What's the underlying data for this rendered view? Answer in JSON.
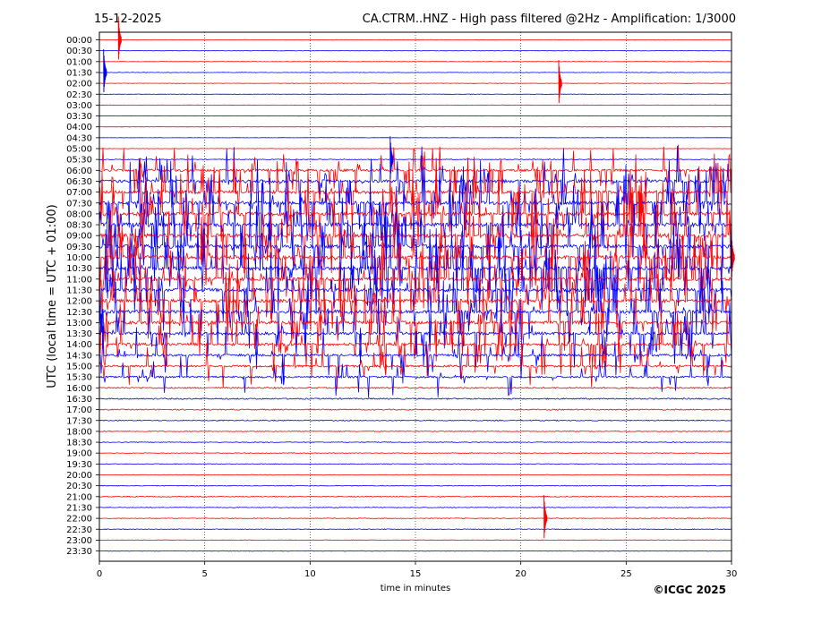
{
  "header": {
    "date": "15-12-2025",
    "title": "CA.CTRM..HNZ - High pass filtered @2Hz - Amplification: 1/3000"
  },
  "footer": {
    "copyright": "©ICGC 2025"
  },
  "chart_data": {
    "type": "line",
    "title": "CA.CTRM..HNZ - High pass filtered @2Hz - Amplification: 1/3000",
    "xlabel": "time in minutes",
    "ylabel": "UTC (local time = UTC + 01:00)",
    "xlim": [
      0,
      30
    ],
    "xticks": [
      0,
      5,
      10,
      15,
      20,
      25,
      30
    ],
    "grid": "vertical dotted",
    "colors": {
      "even_rows": "#ff0000",
      "odd_rows": "#0000ff"
    },
    "rows": [
      "00:00",
      "00:30",
      "01:00",
      "01:30",
      "02:00",
      "02:30",
      "03:00",
      "03:30",
      "04:00",
      "04:30",
      "05:00",
      "05:30",
      "06:00",
      "06:30",
      "07:00",
      "07:30",
      "08:00",
      "08:30",
      "09:00",
      "09:30",
      "10:00",
      "10:30",
      "11:00",
      "11:30",
      "12:00",
      "12:30",
      "13:00",
      "13:30",
      "14:00",
      "14:30",
      "15:00",
      "15:30",
      "16:00",
      "16:30",
      "17:00",
      "17:30",
      "18:00",
      "18:30",
      "19:00",
      "19:30",
      "20:00",
      "20:30",
      "21:00",
      "21:30",
      "22:00",
      "22:30",
      "23:00",
      "23:30"
    ],
    "activity_by_row": [
      0.3,
      0.3,
      0.3,
      0.3,
      0.3,
      0.3,
      0.2,
      0.2,
      0.2,
      0.2,
      0.3,
      0.6,
      1.6,
      2.0,
      2.2,
      2.4,
      2.6,
      2.6,
      2.6,
      2.5,
      2.5,
      2.5,
      2.4,
      2.4,
      2.3,
      2.3,
      2.2,
      2.0,
      1.8,
      1.6,
      1.4,
      1.2,
      1.0,
      0.9,
      0.8,
      0.7,
      0.6,
      0.5,
      0.5,
      0.5,
      0.4,
      0.5,
      0.6,
      0.5,
      0.5,
      0.5,
      0.4,
      0.4
    ],
    "events": [
      {
        "row": "00:00",
        "minute": 0.9,
        "note": "spike"
      },
      {
        "row": "01:30",
        "minute": 0.2,
        "note": "spike"
      },
      {
        "row": "02:00",
        "minute": 21.8,
        "note": "spike"
      },
      {
        "row": "05:30",
        "minute": 13.8,
        "note": "spike"
      },
      {
        "row": "10:00",
        "minute": 30.0,
        "note": "spike"
      },
      {
        "row": "22:00",
        "minute": 21.1,
        "note": "spike"
      }
    ]
  }
}
